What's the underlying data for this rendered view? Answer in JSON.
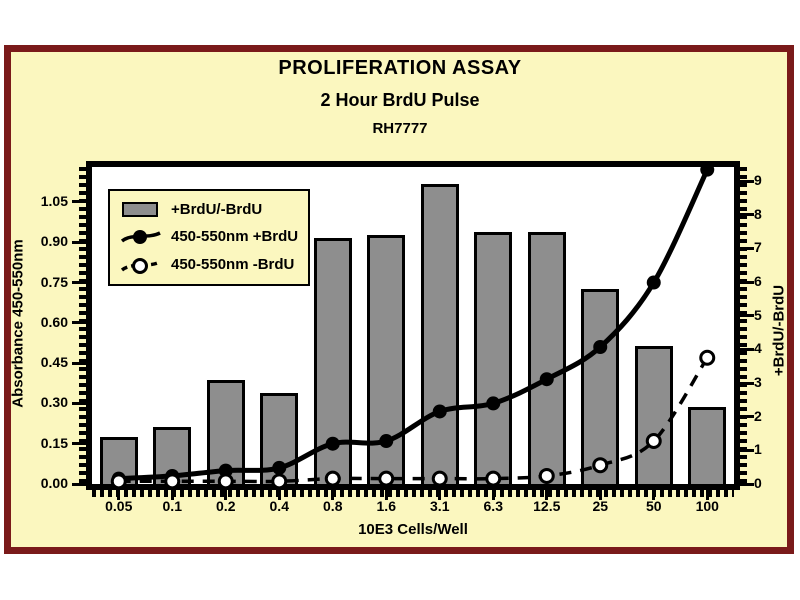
{
  "window": {
    "bg_color": "#ffffff",
    "panel_bg": "#fbf7bf",
    "panel_border_color": "#7a1a1a",
    "plot_bg": "#ffffff",
    "line_color": "#000000"
  },
  "titles": {
    "main": "PROLIFERATION ASSAY",
    "subtitle": "2 Hour BrdU Pulse",
    "cell_line": "RH7777"
  },
  "chart_data": {
    "type": "combo-bar-line",
    "title": "PROLIFERATION ASSAY",
    "subtitle": "2 Hour BrdU Pulse",
    "annotation": "RH7777",
    "xlabel": "10E3 Cells/Well",
    "categories": [
      "0.05",
      "0.1",
      "0.2",
      "0.4",
      "0.8",
      "1.6",
      "3.1",
      "6.3",
      "12.5",
      "25",
      "50",
      "100"
    ],
    "left_axis": {
      "label": "Absorbance 450-550nm",
      "tick_labels": [
        "0.00",
        "0.15",
        "0.30",
        "0.45",
        "0.60",
        "0.75",
        "0.90",
        "1.05"
      ],
      "tick_values": [
        0,
        0.15,
        0.3,
        0.45,
        0.6,
        0.75,
        0.9,
        1.05
      ],
      "range": [
        0,
        1.18
      ],
      "grid": false
    },
    "right_axis": {
      "label": "+BrdU/-BrdU",
      "tick_labels": [
        "0",
        "1",
        "2",
        "3",
        "4",
        "5",
        "6",
        "7",
        "8",
        "9"
      ],
      "tick_values": [
        0,
        1,
        2,
        3,
        4,
        5,
        6,
        7,
        8,
        9
      ],
      "range": [
        0,
        9.42
      ],
      "grid": false
    },
    "bars": {
      "name": "+BrdU/-BrdU",
      "axis": "right",
      "color": "#8e8e8e",
      "values": [
        1.4,
        1.7,
        3.1,
        2.7,
        7.3,
        7.4,
        8.9,
        7.5,
        7.5,
        5.8,
        4.1,
        2.3
      ]
    },
    "series": [
      {
        "name": "450-550nm +BrdU",
        "axis": "left",
        "line_style": "solid",
        "marker": "filled-circle",
        "values": [
          0.02,
          0.03,
          0.05,
          0.06,
          0.15,
          0.16,
          0.27,
          0.3,
          0.39,
          0.51,
          0.75,
          1.17
        ]
      },
      {
        "name": "450-550nm -BrdU",
        "axis": "left",
        "line_style": "dashed",
        "marker": "open-circle",
        "values": [
          0.01,
          0.01,
          0.01,
          0.01,
          0.02,
          0.02,
          0.02,
          0.02,
          0.03,
          0.07,
          0.16,
          0.47
        ]
      }
    ],
    "legend": {
      "position": "upper-left-inside",
      "items": [
        "+BrdU/-BrdU",
        "450-550nm +BrdU",
        "450-550nm -BrdU"
      ]
    }
  }
}
